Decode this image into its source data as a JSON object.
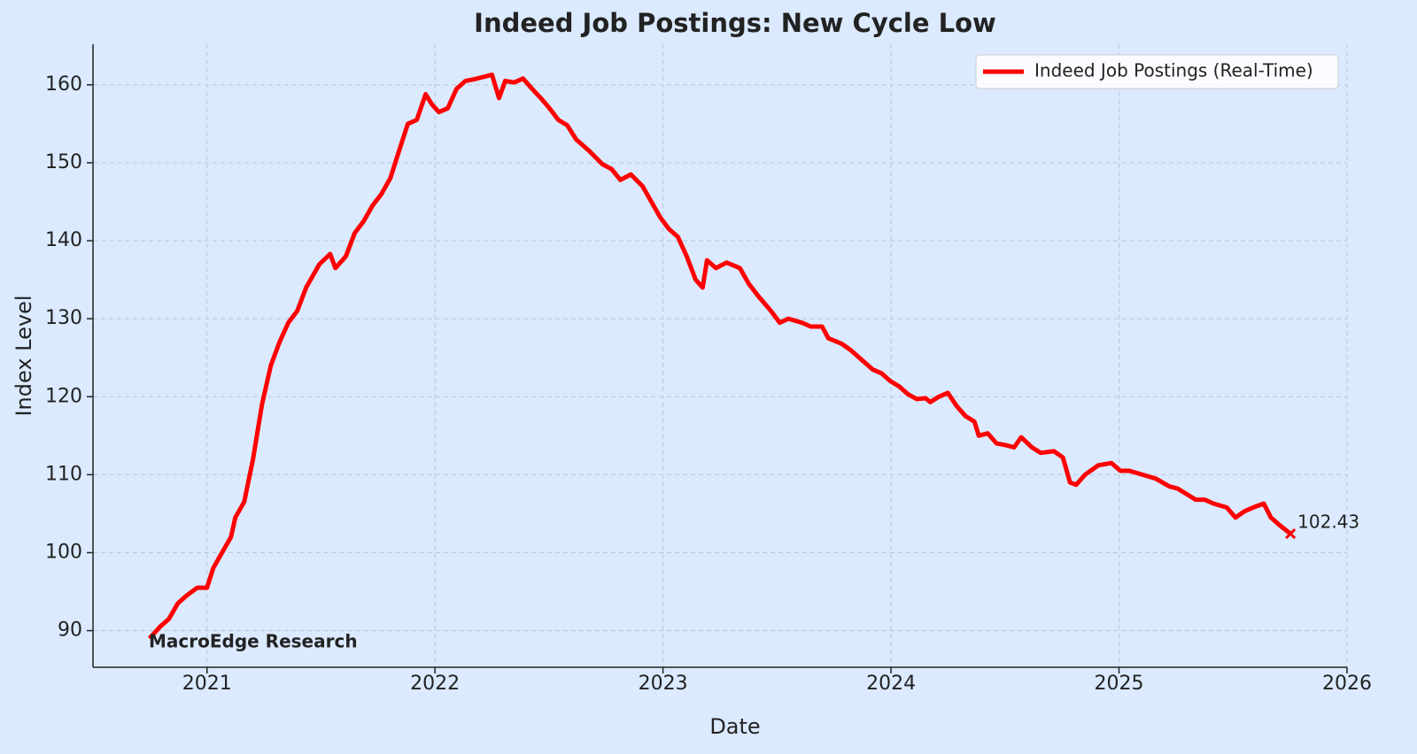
{
  "chart_data": {
    "type": "line",
    "title": "Indeed Job Postings: New Cycle Low",
    "xlabel": "Date",
    "ylabel": "Index Level",
    "annotation": "MacroEdge Research",
    "x": [
      2020.748,
      2020.794,
      2020.833,
      2020.872,
      2020.911,
      2020.957,
      2021.0,
      2021.027,
      2021.066,
      2021.105,
      2021.124,
      2021.163,
      2021.202,
      2021.241,
      2021.28,
      2021.318,
      2021.357,
      2021.396,
      2021.435,
      2021.493,
      2021.54,
      2021.563,
      2021.609,
      2021.648,
      2021.687,
      2021.726,
      2021.765,
      2021.804,
      2021.842,
      2021.881,
      2021.92,
      2021.959,
      2021.986,
      2022.017,
      2022.056,
      2022.095,
      2022.134,
      2022.172,
      2022.211,
      2022.25,
      2022.281,
      2022.308,
      2022.347,
      2022.386,
      2022.425,
      2022.464,
      2022.502,
      2022.541,
      2022.58,
      2022.619,
      2022.677,
      2022.735,
      2022.774,
      2022.813,
      2022.859,
      2022.91,
      2022.949,
      2022.988,
      2023.026,
      2023.065,
      2023.104,
      2023.143,
      2023.174,
      2023.193,
      2023.232,
      2023.279,
      2023.337,
      2023.376,
      2023.415,
      2023.473,
      2023.512,
      2023.55,
      2023.609,
      2023.648,
      2023.698,
      2023.725,
      2023.783,
      2023.822,
      2023.861,
      2023.919,
      2023.958,
      2023.997,
      2024.036,
      2024.075,
      2024.113,
      2024.152,
      2024.172,
      2024.21,
      2024.249,
      2024.288,
      2024.327,
      2024.366,
      2024.385,
      2024.424,
      2024.463,
      2024.502,
      2024.54,
      2024.571,
      2024.618,
      2024.657,
      2024.715,
      2024.754,
      2024.785,
      2024.812,
      2024.851,
      2024.909,
      2024.967,
      2025.006,
      2025.045,
      2025.103,
      2025.161,
      2025.22,
      2025.258,
      2025.297,
      2025.336,
      2025.375,
      2025.414,
      2025.472,
      2025.511,
      2025.55,
      2025.589,
      2025.635,
      2025.666,
      2025.705,
      2025.752
    ],
    "series": [
      {
        "name": "Indeed Job Postings (Real-Time)",
        "color": "#ff0000",
        "values": [
          89,
          90.5,
          91.5,
          93.5,
          94.5,
          95.5,
          95.5,
          98,
          100,
          102,
          104.5,
          106.5,
          112,
          119,
          124,
          127,
          129.5,
          131,
          134,
          137,
          138.3,
          136.5,
          138,
          141,
          142.5,
          144.5,
          146,
          148,
          151.5,
          155,
          155.5,
          158.8,
          157.5,
          156.5,
          157,
          159.5,
          160.5,
          160.7,
          161,
          161.3,
          158.3,
          160.5,
          160.3,
          160.8,
          159.5,
          158.3,
          157,
          155.5,
          154.8,
          153,
          151.5,
          149.8,
          149.2,
          147.8,
          148.5,
          147,
          145,
          143,
          141.5,
          140.5,
          138,
          135,
          134,
          137.5,
          136.5,
          137.2,
          136.5,
          134.5,
          133,
          131,
          129.5,
          130,
          129.5,
          129,
          129,
          127.5,
          126.8,
          126,
          125,
          123.5,
          123,
          122,
          121.3,
          120.3,
          119.7,
          119.8,
          119.3,
          120,
          120.5,
          118.8,
          117.5,
          116.8,
          115,
          115.3,
          114,
          113.8,
          113.5,
          114.8,
          113.5,
          112.8,
          113,
          112.2,
          109,
          108.7,
          110,
          111.2,
          111.5,
          110.5,
          110.5,
          110,
          109.5,
          108.5,
          108.2,
          107.5,
          106.8,
          106.8,
          106.3,
          105.8,
          104.5,
          105.3,
          105.8,
          106.3,
          104.5,
          103.5,
          102.43
        ]
      }
    ],
    "xlim": [
      2020.5,
      2026
    ],
    "xticks": [
      2021,
      2022,
      2023,
      2024,
      2025,
      2026
    ],
    "ylim": [
      85.3,
      165.2
    ],
    "yticks": [
      90,
      100,
      110,
      120,
      130,
      140,
      150,
      160
    ],
    "grid": true,
    "legend": "upper right"
  }
}
